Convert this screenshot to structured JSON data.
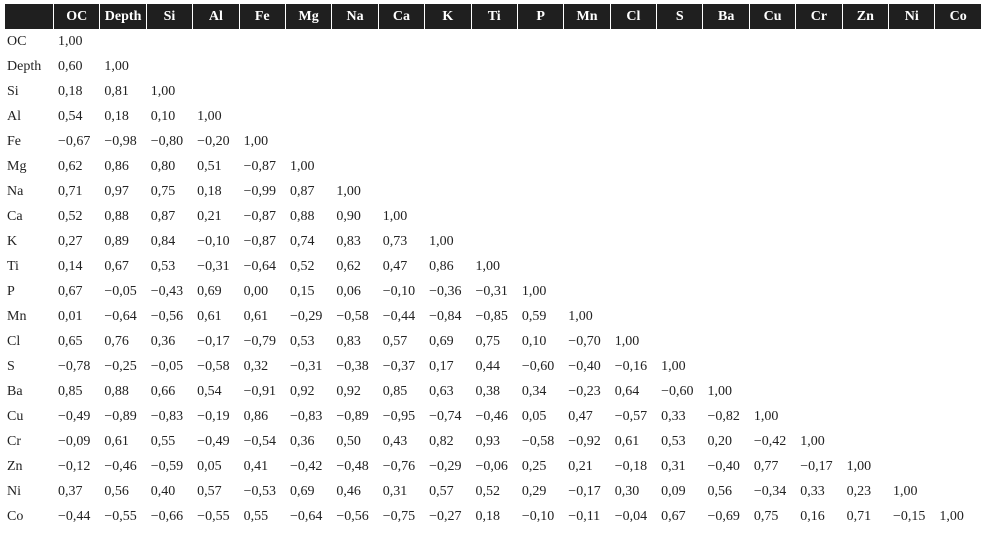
{
  "table": {
    "columns": [
      "OC",
      "Depth",
      "Si",
      "Al",
      "Fe",
      "Mg",
      "Na",
      "Ca",
      "K",
      "Ti",
      "P",
      "Mn",
      "Cl",
      "S",
      "Ba",
      "Cu",
      "Cr",
      "Zn",
      "Ni",
      "Co"
    ],
    "rows": [
      {
        "label": "OC",
        "values": [
          "1,00"
        ]
      },
      {
        "label": "Depth",
        "values": [
          "0,60",
          "1,00"
        ]
      },
      {
        "label": "Si",
        "values": [
          "0,18",
          "0,81",
          "1,00"
        ]
      },
      {
        "label": "Al",
        "values": [
          "0,54",
          "0,18",
          "0,10",
          "1,00"
        ]
      },
      {
        "label": "Fe",
        "values": [
          "−0,67",
          "−0,98",
          "−0,80",
          "−0,20",
          "1,00"
        ]
      },
      {
        "label": "Mg",
        "values": [
          "0,62",
          "0,86",
          "0,80",
          "0,51",
          "−0,87",
          "1,00"
        ]
      },
      {
        "label": "Na",
        "values": [
          "0,71",
          "0,97",
          "0,75",
          "0,18",
          "−0,99",
          "0,87",
          "1,00"
        ]
      },
      {
        "label": "Ca",
        "values": [
          "0,52",
          "0,88",
          "0,87",
          "0,21",
          "−0,87",
          "0,88",
          "0,90",
          "1,00"
        ]
      },
      {
        "label": "K",
        "values": [
          "0,27",
          "0,89",
          "0,84",
          "−0,10",
          "−0,87",
          "0,74",
          "0,83",
          "0,73",
          "1,00"
        ]
      },
      {
        "label": "Ti",
        "values": [
          "0,14",
          "0,67",
          "0,53",
          "−0,31",
          "−0,64",
          "0,52",
          "0,62",
          "0,47",
          "0,86",
          "1,00"
        ]
      },
      {
        "label": "P",
        "values": [
          "0,67",
          "−0,05",
          "−0,43",
          "0,69",
          "0,00",
          "0,15",
          "0,06",
          "−0,10",
          "−0,36",
          "−0,31",
          "1,00"
        ]
      },
      {
        "label": "Mn",
        "values": [
          "0,01",
          "−0,64",
          "−0,56",
          "0,61",
          "0,61",
          "−0,29",
          "−0,58",
          "−0,44",
          "−0,84",
          "−0,85",
          "0,59",
          "1,00"
        ]
      },
      {
        "label": "Cl",
        "values": [
          "0,65",
          "0,76",
          "0,36",
          "−0,17",
          "−0,79",
          "0,53",
          "0,83",
          "0,57",
          "0,69",
          "0,75",
          "0,10",
          "−0,70",
          "1,00"
        ]
      },
      {
        "label": "S",
        "values": [
          "−0,78",
          "−0,25",
          "−0,05",
          "−0,58",
          "0,32",
          "−0,31",
          "−0,38",
          "−0,37",
          "0,17",
          "0,44",
          "−0,60",
          "−0,40",
          "−0,16",
          "1,00"
        ]
      },
      {
        "label": "Ba",
        "values": [
          "0,85",
          "0,88",
          "0,66",
          "0,54",
          "−0,91",
          "0,92",
          "0,92",
          "0,85",
          "0,63",
          "0,38",
          "0,34",
          "−0,23",
          "0,64",
          "−0,60",
          "1,00"
        ]
      },
      {
        "label": "Cu",
        "values": [
          "−0,49",
          "−0,89",
          "−0,83",
          "−0,19",
          "0,86",
          "−0,83",
          "−0,89",
          "−0,95",
          "−0,74",
          "−0,46",
          "0,05",
          "0,47",
          "−0,57",
          "0,33",
          "−0,82",
          "1,00"
        ]
      },
      {
        "label": "Cr",
        "values": [
          "−0,09",
          "0,61",
          "0,55",
          "−0,49",
          "−0,54",
          "0,36",
          "0,50",
          "0,43",
          "0,82",
          "0,93",
          "−0,58",
          "−0,92",
          "0,61",
          "0,53",
          "0,20",
          "−0,42",
          "1,00"
        ]
      },
      {
        "label": "Zn",
        "values": [
          "−0,12",
          "−0,46",
          "−0,59",
          "0,05",
          "0,41",
          "−0,42",
          "−0,48",
          "−0,76",
          "−0,29",
          "−0,06",
          "0,25",
          "0,21",
          "−0,18",
          "0,31",
          "−0,40",
          "0,77",
          "−0,17",
          "1,00"
        ]
      },
      {
        "label": "Ni",
        "values": [
          "0,37",
          "0,56",
          "0,40",
          "0,57",
          "−0,53",
          "0,69",
          "0,46",
          "0,31",
          "0,57",
          "0,52",
          "0,29",
          "−0,17",
          "0,30",
          "0,09",
          "0,56",
          "−0,34",
          "0,33",
          "0,23",
          "1,00"
        ]
      },
      {
        "label": "Co",
        "values": [
          "−0,44",
          "−0,55",
          "−0,66",
          "−0,55",
          "0,55",
          "−0,64",
          "−0,56",
          "−0,75",
          "−0,27",
          "0,18",
          "−0,10",
          "−0,11",
          "−0,04",
          "0,67",
          "−0,69",
          "0,75",
          "0,16",
          "0,71",
          "−0,15",
          "1,00"
        ]
      }
    ]
  }
}
